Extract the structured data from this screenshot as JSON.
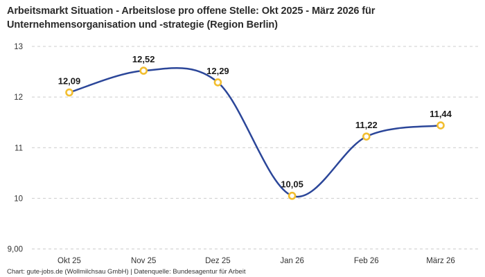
{
  "title": "Arbeitsmarkt Situation - Arbeitslose pro offene Stelle: Okt 2025 - März 2026 für Unternehmensorganisation und -strategie (Region Berlin)",
  "footer": "Chart: gute-jobs.de (Wollmilchsau GmbH) | Datenquelle: Bundesagentur für Arbeit",
  "chart_data": {
    "type": "line",
    "title": "Arbeitsmarkt Situation - Arbeitslose pro offene Stelle: Okt 2025 - März 2026 für Unternehmensorganisation und -strategie (Region Berlin)",
    "categories": [
      "Okt 25",
      "Nov 25",
      "Dez 25",
      "Jan 26",
      "Feb 26",
      "März 26"
    ],
    "values": [
      12.09,
      12.52,
      12.29,
      10.05,
      11.22,
      11.44
    ],
    "value_labels": [
      "12,09",
      "12,52",
      "12,29",
      "10,05",
      "11,22",
      "11,44"
    ],
    "xlabel": "",
    "ylabel": "",
    "ylim": [
      9,
      13
    ],
    "y_ticks": [
      {
        "value": 13,
        "label": "13"
      },
      {
        "value": 12,
        "label": "12"
      },
      {
        "value": 11,
        "label": "11"
      },
      {
        "value": 10,
        "label": "10"
      },
      {
        "value": 9,
        "label": "9,00"
      }
    ],
    "grid": "horizontal-dashed",
    "legend_position": "none",
    "colors": {
      "line": "#2b4699",
      "marker_stroke": "#f2be30",
      "marker_fill": "#ffffff",
      "grid": "#cccccc",
      "data_label": "#1a1a1a",
      "axis_text": "#333333"
    }
  }
}
